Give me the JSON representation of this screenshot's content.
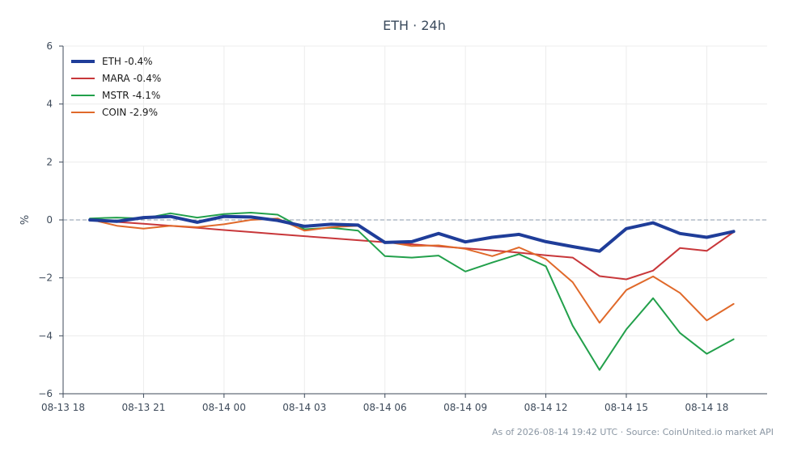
{
  "chart_data": {
    "type": "line",
    "title": "ETH · 24h",
    "xlabel": "",
    "ylabel": "%",
    "ylim": [
      -6,
      6
    ],
    "yticks": [
      -6,
      -4,
      -2,
      0,
      2,
      4,
      6
    ],
    "ytick_labels": [
      "−6",
      "−4",
      "−2",
      "0",
      "2",
      "4",
      "6"
    ],
    "xlim": [
      "2026-08-13 18:00",
      "2026-08-14 20:15"
    ],
    "xticks": [
      "2026-08-13 18:00",
      "2026-08-13 21:00",
      "2026-08-14 00:00",
      "2026-08-14 03:00",
      "2026-08-14 06:00",
      "2026-08-14 09:00",
      "2026-08-14 12:00",
      "2026-08-14 15:00",
      "2026-08-14 18:00"
    ],
    "xtick_labels": [
      "08-13 18",
      "08-13 21",
      "08-14 00",
      "08-14 03",
      "08-14 06",
      "08-14 09",
      "08-14 12",
      "08-14 15",
      "08-14 18"
    ],
    "grid": true,
    "zero_line": true,
    "legend_position": "top-left",
    "x": [
      "2026-08-13 19:00",
      "2026-08-13 20:00",
      "2026-08-13 21:00",
      "2026-08-13 22:00",
      "2026-08-13 23:00",
      "2026-08-14 00:00",
      "2026-08-14 01:00",
      "2026-08-14 02:00",
      "2026-08-14 03:00",
      "2026-08-14 04:00",
      "2026-08-14 05:00",
      "2026-08-14 06:00",
      "2026-08-14 07:00",
      "2026-08-14 08:00",
      "2026-08-14 09:00",
      "2026-08-14 10:00",
      "2026-08-14 11:00",
      "2026-08-14 12:00",
      "2026-08-14 13:00",
      "2026-08-14 14:00",
      "2026-08-14 15:00",
      "2026-08-14 16:00",
      "2026-08-14 17:00",
      "2026-08-14 18:00",
      "2026-08-14 19:00"
    ],
    "series": [
      {
        "name": "ETH -0.4%",
        "color": "#1f3d99",
        "width": 4,
        "values": [
          0.0,
          -0.05,
          0.08,
          0.12,
          -0.08,
          0.12,
          0.1,
          -0.02,
          -0.22,
          -0.15,
          -0.18,
          -0.78,
          -0.75,
          -0.47,
          -0.76,
          -0.6,
          -0.5,
          -0.75,
          -0.92,
          -1.08,
          -0.3,
          -0.1,
          -0.47,
          -0.6,
          -0.4
        ]
      },
      {
        "name": "MARA -0.4%",
        "color": "#c8373a",
        "width": 2,
        "values": [
          0.0,
          -0.07,
          -0.13,
          -0.2,
          -0.27,
          -0.35,
          -0.42,
          -0.49,
          -0.56,
          -0.63,
          -0.7,
          -0.77,
          -0.84,
          -0.91,
          -0.98,
          -1.05,
          -1.13,
          -1.22,
          -1.3,
          -1.94,
          -2.05,
          -1.75,
          -0.97,
          -1.07,
          -0.42
        ]
      },
      {
        "name": "MSTR -4.1%",
        "color": "#22a04b",
        "width": 2,
        "values": [
          0.05,
          0.08,
          0.05,
          0.23,
          0.08,
          0.2,
          0.25,
          0.18,
          -0.32,
          -0.27,
          -0.37,
          -1.25,
          -1.3,
          -1.23,
          -1.78,
          -1.47,
          -1.18,
          -1.6,
          -3.65,
          -5.18,
          -3.78,
          -2.7,
          -3.9,
          -4.62,
          -4.12
        ]
      },
      {
        "name": "COIN -2.9%",
        "color": "#e0692a",
        "width": 2,
        "values": [
          0.02,
          -0.2,
          -0.3,
          -0.2,
          -0.25,
          -0.15,
          0.0,
          0.05,
          -0.37,
          -0.25,
          -0.2,
          -0.75,
          -0.9,
          -0.88,
          -1.0,
          -1.25,
          -0.95,
          -1.35,
          -2.15,
          -3.55,
          -2.42,
          -1.95,
          -2.52,
          -3.47,
          -2.9
        ]
      }
    ]
  },
  "footer": {
    "text": "As of 2026-08-14 19:42 UTC · Source: CoinUnited.io market API"
  }
}
